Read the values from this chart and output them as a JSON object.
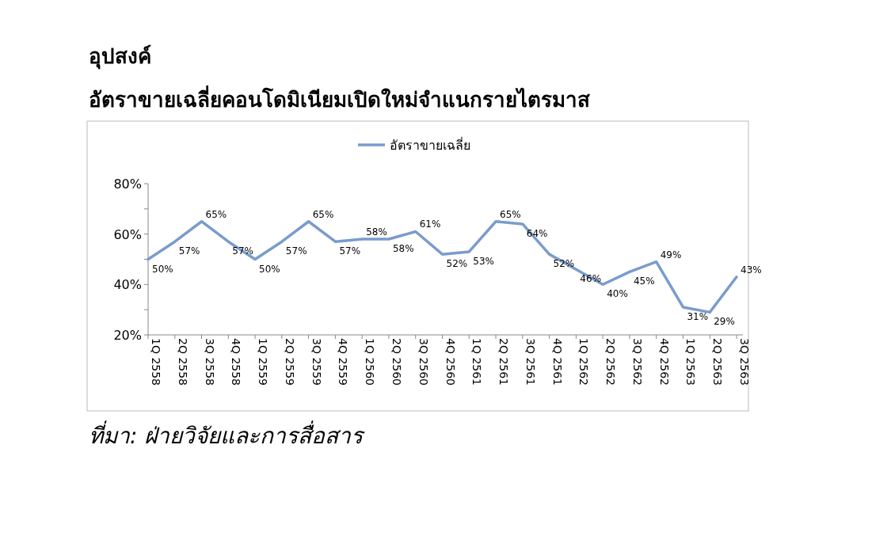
{
  "chart_data": {
    "type": "line",
    "title": "อุปสงค์",
    "subtitle": "อัตราขายเฉลี่ยคอนโดมิเนียมเปิดใหม่จำแนกรายไตรมาส",
    "categories": [
      "1Q 2558",
      "2Q 2558",
      "3Q 2558",
      "4Q 2558",
      "1Q 2559",
      "2Q 2559",
      "3Q 2559",
      "4Q 2559",
      "1Q 2560",
      "2Q 2560",
      "3Q 2560",
      "4Q 2560",
      "1Q 2561",
      "2Q 2561",
      "3Q 2561",
      "4Q 2561",
      "1Q 2562",
      "2Q 2562",
      "3Q 2562",
      "4Q 2562",
      "1Q 2563",
      "2Q 2563",
      "3Q 2563"
    ],
    "series": [
      {
        "name": "อัตราขายเฉลี่ย",
        "color": "#7a9ccc",
        "values": [
          50,
          57,
          65,
          57,
          50,
          57,
          65,
          57,
          58,
          58,
          61,
          52,
          53,
          65,
          64,
          52,
          46,
          40,
          45,
          49,
          31,
          29,
          43
        ],
        "value_labels": [
          "50%",
          "57%",
          "65%",
          "57%",
          "50%",
          "57%",
          "65%",
          "57%",
          "58%",
          "58%",
          "61%",
          "52%",
          "53%",
          "65%",
          "64%",
          "52%",
          "46%",
          "40%",
          "45%",
          "49%",
          "31%",
          "29%",
          "43%"
        ]
      }
    ],
    "ylim": [
      20,
      80
    ],
    "yticks": [
      {
        "value": 20,
        "label": "20%"
      },
      {
        "value": 30,
        "label": null
      },
      {
        "value": 40,
        "label": "40%"
      },
      {
        "value": 50,
        "label": null
      },
      {
        "value": 60,
        "label": "60%"
      },
      {
        "value": 70,
        "label": null
      },
      {
        "value": 80,
        "label": "80%"
      }
    ],
    "legend": "top",
    "line_style": "solid",
    "annotations": [
      "ที่มา: ฝ่ายวิจัยและการสื่อสาร"
    ]
  }
}
